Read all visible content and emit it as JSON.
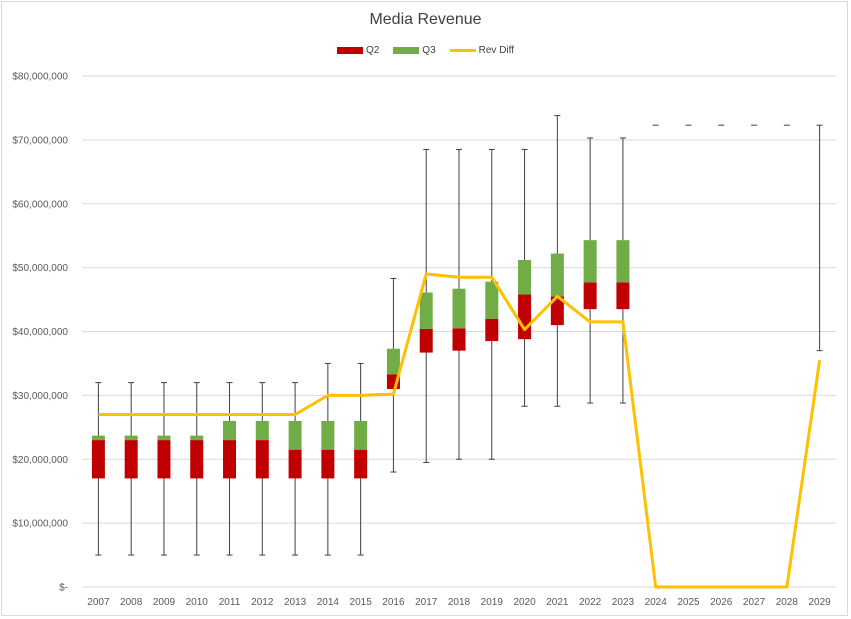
{
  "chart_data": {
    "type": "bar",
    "title": "Media Revenue",
    "categories": [
      "2007",
      "2008",
      "2009",
      "2010",
      "2011",
      "2012",
      "2013",
      "2014",
      "2015",
      "2016",
      "2017",
      "2018",
      "2019",
      "2020",
      "2021",
      "2022",
      "2023",
      "2024",
      "2025",
      "2026",
      "2027",
      "2028",
      "2029"
    ],
    "ylim": [
      0,
      80000000
    ],
    "yticks": [
      0,
      10000000,
      20000000,
      30000000,
      40000000,
      50000000,
      60000000,
      70000000,
      80000000
    ],
    "ytick_labels": [
      "$-",
      "$10,000,000",
      "$20,000,000",
      "$30,000,000",
      "$40,000,000",
      "$50,000,000",
      "$60,000,000",
      "$70,000,000",
      "$80,000,000"
    ],
    "grid": true,
    "legend_position": "top",
    "series": [
      {
        "name": "Q2",
        "type": "stacked-bar",
        "color": "#c00000",
        "base": [
          17000000,
          17000000,
          17000000,
          17000000,
          17000000,
          17000000,
          17000000,
          17000000,
          17000000,
          31000000,
          36700000,
          37000000,
          38500000,
          38800000,
          41000000,
          43500000,
          43500000,
          null,
          null,
          null,
          null,
          null,
          null
        ],
        "values": [
          6000000,
          6000000,
          6000000,
          6000000,
          6000000,
          6000000,
          4500000,
          4500000,
          4500000,
          2300000,
          3700000,
          3500000,
          3500000,
          7000000,
          4500000,
          4200000,
          4200000,
          null,
          null,
          null,
          null,
          null,
          null
        ]
      },
      {
        "name": "Q3",
        "type": "stacked-bar",
        "color": "#70ad47",
        "values": [
          700000,
          700000,
          700000,
          700000,
          3000000,
          3000000,
          4500000,
          4500000,
          4500000,
          4000000,
          5700000,
          6200000,
          5800000,
          5400000,
          6700000,
          6600000,
          6600000,
          null,
          null,
          null,
          null,
          null,
          null
        ]
      },
      {
        "name": "Rev Diff",
        "type": "line",
        "color": "#ffc000",
        "values": [
          27000000,
          27000000,
          27000000,
          27000000,
          27000000,
          27000000,
          27000000,
          30000000,
          30000000,
          30200000,
          49000000,
          48500000,
          48500000,
          40300000,
          45500000,
          41500000,
          41500000,
          0,
          0,
          0,
          0,
          0,
          35500000
        ]
      }
    ],
    "whiskers": {
      "low": [
        5000000,
        5000000,
        5000000,
        5000000,
        5000000,
        5000000,
        5000000,
        5000000,
        5000000,
        18000000,
        19500000,
        20000000,
        20000000,
        28300000,
        28300000,
        28800000,
        28800000,
        null,
        null,
        null,
        null,
        null,
        37000000
      ],
      "high": [
        32000000,
        32000000,
        32000000,
        32000000,
        32000000,
        32000000,
        32000000,
        35000000,
        35000000,
        48300000,
        68500000,
        68500000,
        68500000,
        68500000,
        73800000,
        70300000,
        70300000,
        72300000,
        72300000,
        72300000,
        72300000,
        72300000,
        72300000
      ]
    }
  },
  "colors": {
    "q2": "#c00000",
    "q3": "#70ad47",
    "rev_diff": "#ffc000",
    "grid": "#d9d9d9",
    "whisker": "#404040"
  }
}
